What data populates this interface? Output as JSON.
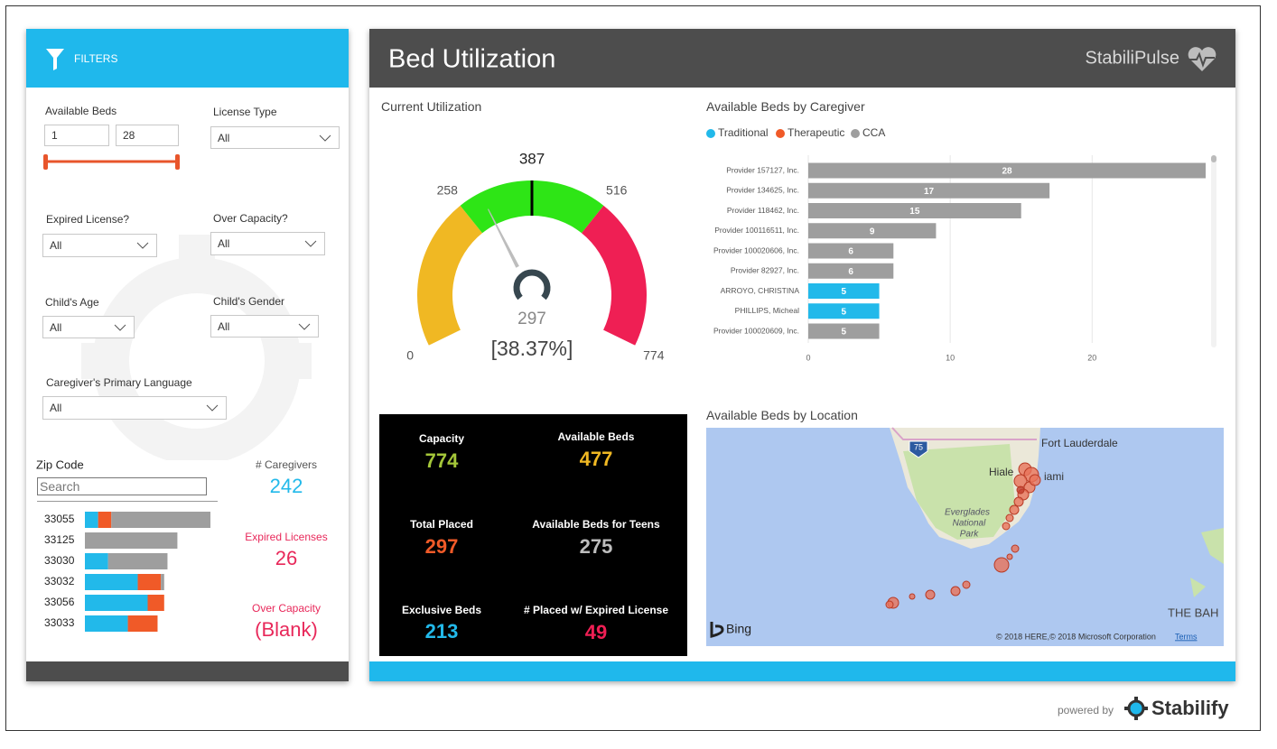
{
  "filters": {
    "title": "FILTERS",
    "available_beds": {
      "label": "Available Beds",
      "min": "1",
      "max": "28"
    },
    "license_type": {
      "label": "License Type",
      "value": "All"
    },
    "expired_license": {
      "label": "Expired License?",
      "value": "All"
    },
    "over_capacity": {
      "label": "Over Capacity?",
      "value": "All"
    },
    "childs_age": {
      "label": "Child's Age",
      "value": "All"
    },
    "childs_gender": {
      "label": "Child's Gender",
      "value": "All"
    },
    "primary_language": {
      "label": "Caregiver's Primary Language",
      "value": "All"
    },
    "zip_code": {
      "label": "Zip Code",
      "placeholder": "Search"
    }
  },
  "zip_chart": {
    "type": "bar",
    "orientation": "horizontal",
    "stacked": true,
    "categories": [
      "33055",
      "33125",
      "33030",
      "33032",
      "33056",
      "33033"
    ],
    "series": [
      {
        "color": "#22b9ea",
        "values": [
          2,
          null,
          3.5,
          8,
          9.5,
          6.5
        ]
      },
      {
        "color": "#f05a28",
        "values": [
          2,
          null,
          null,
          3.5,
          2.5,
          4.5
        ]
      },
      {
        "color": "#9e9e9e",
        "values": [
          15,
          14,
          9,
          0.5,
          null,
          null
        ]
      }
    ]
  },
  "kpis_left": [
    {
      "label": "# Caregivers",
      "value": 242,
      "color": "#22b9ea"
    },
    {
      "label": "Expired Licenses",
      "value": 26,
      "color": "#e8285a"
    },
    {
      "label": "Over Capacity",
      "value": "(Blank)",
      "color": "#e8285a"
    }
  ],
  "header": {
    "title": "Bed Utilization",
    "brand": "StabiliPulse"
  },
  "gauge": {
    "type": "gauge",
    "title": "Current Utilization",
    "min": 0,
    "max": 774,
    "value": 297,
    "target": 387,
    "bands": [
      258,
      516
    ],
    "band_colors": [
      "#f0b823",
      "#2ee516",
      "#ef1f54"
    ],
    "percent_label": "[38.37%]"
  },
  "cards": [
    {
      "label": "Capacity",
      "value": 774,
      "color": "#a4c639"
    },
    {
      "label": "Available Beds",
      "value": 477,
      "color": "#f0b823"
    },
    {
      "label": "Total Placed",
      "value": 297,
      "color": "#f05a28"
    },
    {
      "label": "Available Beds for Teens",
      "value": 275,
      "color": "#bdbdbd"
    },
    {
      "label": "Exclusive Beds",
      "value": 213,
      "color": "#22b9ea"
    },
    {
      "label": "# Placed w/ Expired License",
      "value": 49,
      "color": "#ef1f54"
    }
  ],
  "caregiver_chart": {
    "type": "bar",
    "orientation": "horizontal",
    "title": "Available Beds by Caregiver",
    "categories": [
      "Provider 157127, Inc.",
      "Provider 134625, Inc.",
      "Provider 118462, Inc.",
      "Provider 100116511, Inc.",
      "Provider 100020606, Inc.",
      "Provider 82927, Inc.",
      "ARROYO, CHRISTINA",
      "PHILLIPS, Micheal",
      "Provider 100020609, Inc."
    ],
    "series": [
      {
        "name": "Traditional",
        "color": "#22b9ea",
        "values": [
          null,
          null,
          null,
          null,
          null,
          null,
          5,
          5,
          null
        ]
      },
      {
        "name": "Therapeutic",
        "color": "#f05a28",
        "values": [
          null,
          null,
          null,
          null,
          null,
          null,
          null,
          null,
          null
        ]
      },
      {
        "name": "CCA",
        "color": "#9e9e9e",
        "values": [
          28,
          17,
          15,
          9,
          6,
          6,
          null,
          null,
          5
        ]
      }
    ],
    "xlim": [
      0,
      28
    ],
    "xticks": [
      0,
      10,
      20
    ],
    "grid": true
  },
  "map": {
    "title": "Available Beds by Location",
    "city1": "Fort Lauderdale",
    "city2": "Hiale",
    "city3": "iami",
    "park": [
      "Everglades",
      "National",
      "Park"
    ],
    "highway": "75",
    "region": "THE BAH",
    "provider": "Bing",
    "copyright": "© 2018 HERE,© 2018 Microsoft Corporation",
    "terms": "Terms"
  },
  "footer": {
    "powered_by": "powered by",
    "brand": "Stabilify"
  }
}
